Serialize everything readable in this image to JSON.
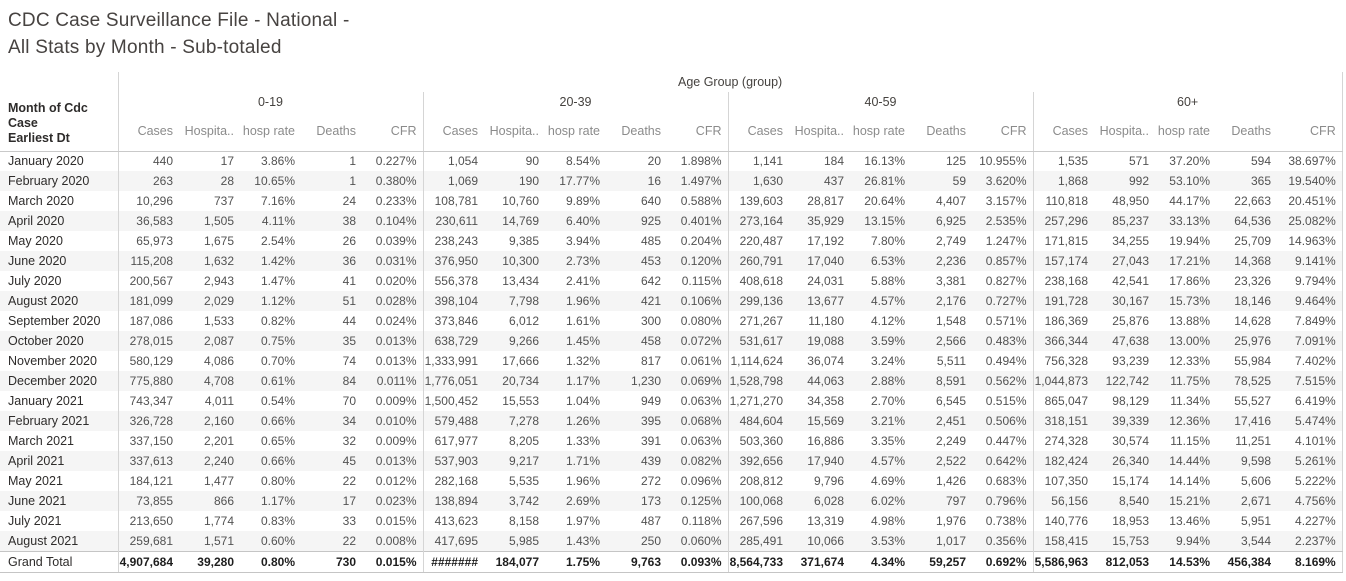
{
  "title": {
    "line1": "CDC Case Surveillance File - National -",
    "line2": "All Stats by Month - Sub-totaled"
  },
  "colors": {
    "band": "#f5f5f5",
    "grid_line": "#d5d5d5",
    "header_rule": "#c9c9c9",
    "header_text": "#8b8b8b",
    "label_text": "#2e2c2b",
    "value_text": "#525252",
    "title_text": "#474341"
  },
  "chart_data": {
    "type": "table",
    "title": "CDC Case Surveillance File - National - All Stats by Month - Sub-totaled",
    "column_group_field": "Age Group (group)",
    "row_field": {
      "line1": "Month of Cdc Case",
      "line2": "Earliest Dt"
    },
    "column_groups": [
      "0-19",
      "20-39",
      "40-59",
      "60+"
    ],
    "metrics": [
      "Cases",
      "Hospita..",
      "hosp rate",
      "Deaths",
      "CFR"
    ],
    "rows": [
      {
        "label": "January 2020",
        "cells": [
          "440",
          "17",
          "3.86%",
          "1",
          "0.227%",
          "1,054",
          "90",
          "8.54%",
          "20",
          "1.898%",
          "1,141",
          "184",
          "16.13%",
          "125",
          "10.955%",
          "1,535",
          "571",
          "37.20%",
          "594",
          "38.697%"
        ]
      },
      {
        "label": "February 2020",
        "cells": [
          "263",
          "28",
          "10.65%",
          "1",
          "0.380%",
          "1,069",
          "190",
          "17.77%",
          "16",
          "1.497%",
          "1,630",
          "437",
          "26.81%",
          "59",
          "3.620%",
          "1,868",
          "992",
          "53.10%",
          "365",
          "19.540%"
        ]
      },
      {
        "label": "March 2020",
        "cells": [
          "10,296",
          "737",
          "7.16%",
          "24",
          "0.233%",
          "108,781",
          "10,760",
          "9.89%",
          "640",
          "0.588%",
          "139,603",
          "28,817",
          "20.64%",
          "4,407",
          "3.157%",
          "110,818",
          "48,950",
          "44.17%",
          "22,663",
          "20.451%"
        ]
      },
      {
        "label": "April 2020",
        "cells": [
          "36,583",
          "1,505",
          "4.11%",
          "38",
          "0.104%",
          "230,611",
          "14,769",
          "6.40%",
          "925",
          "0.401%",
          "273,164",
          "35,929",
          "13.15%",
          "6,925",
          "2.535%",
          "257,296",
          "85,237",
          "33.13%",
          "64,536",
          "25.082%"
        ]
      },
      {
        "label": "May 2020",
        "cells": [
          "65,973",
          "1,675",
          "2.54%",
          "26",
          "0.039%",
          "238,243",
          "9,385",
          "3.94%",
          "485",
          "0.204%",
          "220,487",
          "17,192",
          "7.80%",
          "2,749",
          "1.247%",
          "171,815",
          "34,255",
          "19.94%",
          "25,709",
          "14.963%"
        ]
      },
      {
        "label": "June 2020",
        "cells": [
          "115,208",
          "1,632",
          "1.42%",
          "36",
          "0.031%",
          "376,950",
          "10,300",
          "2.73%",
          "453",
          "0.120%",
          "260,791",
          "17,040",
          "6.53%",
          "2,236",
          "0.857%",
          "157,174",
          "27,043",
          "17.21%",
          "14,368",
          "9.141%"
        ]
      },
      {
        "label": "July 2020",
        "cells": [
          "200,567",
          "2,943",
          "1.47%",
          "41",
          "0.020%",
          "556,378",
          "13,434",
          "2.41%",
          "642",
          "0.115%",
          "408,618",
          "24,031",
          "5.88%",
          "3,381",
          "0.827%",
          "238,168",
          "42,541",
          "17.86%",
          "23,326",
          "9.794%"
        ]
      },
      {
        "label": "August 2020",
        "cells": [
          "181,099",
          "2,029",
          "1.12%",
          "51",
          "0.028%",
          "398,104",
          "7,798",
          "1.96%",
          "421",
          "0.106%",
          "299,136",
          "13,677",
          "4.57%",
          "2,176",
          "0.727%",
          "191,728",
          "30,167",
          "15.73%",
          "18,146",
          "9.464%"
        ]
      },
      {
        "label": "September 2020",
        "cells": [
          "187,086",
          "1,533",
          "0.82%",
          "44",
          "0.024%",
          "373,846",
          "6,012",
          "1.61%",
          "300",
          "0.080%",
          "271,267",
          "11,180",
          "4.12%",
          "1,548",
          "0.571%",
          "186,369",
          "25,876",
          "13.88%",
          "14,628",
          "7.849%"
        ]
      },
      {
        "label": "October 2020",
        "cells": [
          "278,015",
          "2,087",
          "0.75%",
          "35",
          "0.013%",
          "638,729",
          "9,266",
          "1.45%",
          "458",
          "0.072%",
          "531,617",
          "19,088",
          "3.59%",
          "2,566",
          "0.483%",
          "366,344",
          "47,638",
          "13.00%",
          "25,976",
          "7.091%"
        ]
      },
      {
        "label": "November 2020",
        "cells": [
          "580,129",
          "4,086",
          "0.70%",
          "74",
          "0.013%",
          "1,333,991",
          "17,666",
          "1.32%",
          "817",
          "0.061%",
          "1,114,624",
          "36,074",
          "3.24%",
          "5,511",
          "0.494%",
          "756,328",
          "93,239",
          "12.33%",
          "55,984",
          "7.402%"
        ]
      },
      {
        "label": "December 2020",
        "cells": [
          "775,880",
          "4,708",
          "0.61%",
          "84",
          "0.011%",
          "1,776,051",
          "20,734",
          "1.17%",
          "1,230",
          "0.069%",
          "1,528,798",
          "44,063",
          "2.88%",
          "8,591",
          "0.562%",
          "1,044,873",
          "122,742",
          "11.75%",
          "78,525",
          "7.515%"
        ]
      },
      {
        "label": "January 2021",
        "cells": [
          "743,347",
          "4,011",
          "0.54%",
          "70",
          "0.009%",
          "1,500,452",
          "15,553",
          "1.04%",
          "949",
          "0.063%",
          "1,271,270",
          "34,358",
          "2.70%",
          "6,545",
          "0.515%",
          "865,047",
          "98,129",
          "11.34%",
          "55,527",
          "6.419%"
        ]
      },
      {
        "label": "February 2021",
        "cells": [
          "326,728",
          "2,160",
          "0.66%",
          "34",
          "0.010%",
          "579,488",
          "7,278",
          "1.26%",
          "395",
          "0.068%",
          "484,604",
          "15,569",
          "3.21%",
          "2,451",
          "0.506%",
          "318,151",
          "39,339",
          "12.36%",
          "17,416",
          "5.474%"
        ]
      },
      {
        "label": "March 2021",
        "cells": [
          "337,150",
          "2,201",
          "0.65%",
          "32",
          "0.009%",
          "617,977",
          "8,205",
          "1.33%",
          "391",
          "0.063%",
          "503,360",
          "16,886",
          "3.35%",
          "2,249",
          "0.447%",
          "274,328",
          "30,574",
          "11.15%",
          "11,251",
          "4.101%"
        ]
      },
      {
        "label": "April 2021",
        "cells": [
          "337,613",
          "2,240",
          "0.66%",
          "45",
          "0.013%",
          "537,903",
          "9,217",
          "1.71%",
          "439",
          "0.082%",
          "392,656",
          "17,940",
          "4.57%",
          "2,522",
          "0.642%",
          "182,424",
          "26,340",
          "14.44%",
          "9,598",
          "5.261%"
        ]
      },
      {
        "label": "May 2021",
        "cells": [
          "184,121",
          "1,477",
          "0.80%",
          "22",
          "0.012%",
          "282,168",
          "5,535",
          "1.96%",
          "272",
          "0.096%",
          "208,812",
          "9,796",
          "4.69%",
          "1,426",
          "0.683%",
          "107,350",
          "15,174",
          "14.14%",
          "5,606",
          "5.222%"
        ]
      },
      {
        "label": "June 2021",
        "cells": [
          "73,855",
          "866",
          "1.17%",
          "17",
          "0.023%",
          "138,894",
          "3,742",
          "2.69%",
          "173",
          "0.125%",
          "100,068",
          "6,028",
          "6.02%",
          "797",
          "0.796%",
          "56,156",
          "8,540",
          "15.21%",
          "2,671",
          "4.756%"
        ]
      },
      {
        "label": "July 2021",
        "cells": [
          "213,650",
          "1,774",
          "0.83%",
          "33",
          "0.015%",
          "413,623",
          "8,158",
          "1.97%",
          "487",
          "0.118%",
          "267,596",
          "13,319",
          "4.98%",
          "1,976",
          "0.738%",
          "140,776",
          "18,953",
          "13.46%",
          "5,951",
          "4.227%"
        ]
      },
      {
        "label": "August 2021",
        "cells": [
          "259,681",
          "1,571",
          "0.60%",
          "22",
          "0.008%",
          "417,695",
          "5,985",
          "1.43%",
          "250",
          "0.060%",
          "285,491",
          "10,066",
          "3.53%",
          "1,017",
          "0.356%",
          "158,415",
          "15,753",
          "9.94%",
          "3,544",
          "2.237%"
        ]
      },
      {
        "label": "Grand Total",
        "is_total": true,
        "cells": [
          "4,907,684",
          "39,280",
          "0.80%",
          "730",
          "0.015%",
          "#######",
          "184,077",
          "1.75%",
          "9,763",
          "0.093%",
          "8,564,733",
          "371,674",
          "4.34%",
          "59,257",
          "0.692%",
          "5,586,963",
          "812,053",
          "14.53%",
          "456,384",
          "8.169%"
        ]
      }
    ]
  }
}
